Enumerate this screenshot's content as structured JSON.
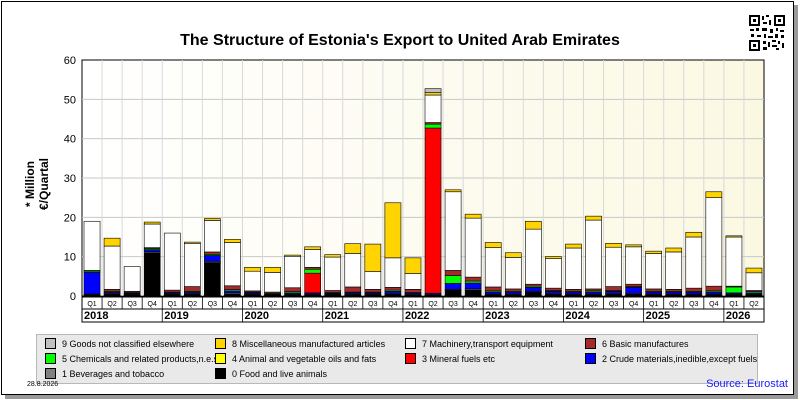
{
  "chart_data": {
    "type": "bar",
    "stacked": true,
    "title": "The Structure of Estonia's Export to United Arab Emirates",
    "ylabel": "* Million €/Quartal",
    "ylim": [
      0,
      60
    ],
    "yticks": [
      0,
      10,
      20,
      30,
      40,
      50,
      60
    ],
    "grid": true,
    "categories": [
      "Q1",
      "Q2",
      "Q3",
      "Q4",
      "Q1",
      "Q2",
      "Q3",
      "Q4",
      "Q1",
      "Q2",
      "Q3",
      "Q4",
      "Q1",
      "Q2",
      "Q3",
      "Q4",
      "Q1",
      "Q2",
      "Q3",
      "Q4",
      "Q1",
      "Q2",
      "Q3",
      "Q4",
      "Q1",
      "Q2",
      "Q3",
      "Q4",
      "Q1",
      "Q2",
      "Q3",
      "Q4",
      "Q1",
      "Q2"
    ],
    "years": [
      {
        "label": "2018",
        "quarters": 4
      },
      {
        "label": "2019",
        "quarters": 4
      },
      {
        "label": "2020",
        "quarters": 4
      },
      {
        "label": "2021",
        "quarters": 4
      },
      {
        "label": "2022",
        "quarters": 4
      },
      {
        "label": "2023",
        "quarters": 4
      },
      {
        "label": "2024",
        "quarters": 4
      },
      {
        "label": "2025",
        "quarters": 4
      },
      {
        "label": "2026",
        "quarters": 2
      }
    ],
    "series": [
      {
        "name": "0 Food and live animals",
        "color": "#000000",
        "values": [
          0.3,
          0.5,
          0.3,
          11,
          0.3,
          0.5,
          8.5,
          0.5,
          0.3,
          0.2,
          0.3,
          0.3,
          0.3,
          0.3,
          0.3,
          0.5,
          0.2,
          0.2,
          1.5,
          1.5,
          0.3,
          0.3,
          1,
          0.5,
          0.3,
          0.3,
          0.5,
          0.5,
          0.3,
          0.3,
          0.3,
          0.3,
          0.3,
          0.3
        ]
      },
      {
        "name": "1 Beverages and tobacco",
        "color": "#808080",
        "values": [
          0.2,
          0.2,
          0.2,
          0.3,
          0.2,
          0.2,
          0.3,
          0.3,
          0.2,
          0.1,
          0.2,
          0.2,
          0.2,
          0.2,
          0.2,
          0.2,
          0.2,
          0.2,
          0.2,
          0.3,
          0.2,
          0.2,
          0.2,
          0.2,
          0.2,
          0.2,
          0.2,
          0.2,
          0.2,
          0.2,
          0.2,
          0.2,
          0.2,
          0.2
        ]
      },
      {
        "name": "2 Crude materials,inedible,except fuels",
        "color": "#0000ff",
        "values": [
          5.5,
          0.3,
          0.2,
          0.5,
          0.3,
          0.3,
          1.5,
          0.5,
          0.3,
          0.2,
          0.3,
          0.3,
          0.2,
          0.3,
          0.3,
          0.5,
          0.3,
          0.3,
          1.5,
          1.5,
          0.5,
          0.5,
          1,
          0.5,
          0.5,
          0.5,
          0.5,
          1.5,
          0.5,
          0.5,
          0.5,
          0.5,
          0.3,
          0.3
        ]
      },
      {
        "name": "3 Mineral fuels etc",
        "color": "#ff0000",
        "values": [
          0,
          0,
          0,
          0,
          0,
          0,
          0,
          0,
          0,
          0,
          0,
          5,
          0,
          0,
          0,
          0,
          0,
          42,
          0,
          0,
          0,
          0,
          0,
          0,
          0,
          0,
          0,
          0,
          0,
          0,
          0,
          0,
          0,
          0
        ]
      },
      {
        "name": "4 Animal and vegetable oils and fats",
        "color": "#ffff00",
        "values": [
          0,
          0,
          0,
          0,
          0,
          0,
          0,
          0,
          0,
          0,
          0,
          0,
          0,
          0,
          0,
          0,
          0,
          0,
          0,
          0,
          0,
          0,
          0,
          0,
          0,
          0,
          0,
          0,
          0,
          0,
          0,
          0,
          0,
          0
        ]
      },
      {
        "name": "5 Chemicals and related products,n.e.s.",
        "color": "#00ff00",
        "values": [
          0.3,
          0.2,
          0.2,
          0.3,
          0.2,
          0.2,
          0.3,
          0.3,
          0.2,
          0.2,
          0.3,
          1,
          0.2,
          0.2,
          0.2,
          0.3,
          0.2,
          1,
          2,
          0.5,
          0.3,
          0.2,
          0.3,
          0.2,
          0.2,
          0.3,
          0.2,
          0.2,
          0.2,
          0.2,
          0.2,
          0.3,
          1.5,
          0.3
        ]
      },
      {
        "name": "6 Basic manufactures",
        "color": "#a52a2a",
        "values": [
          0.2,
          0.5,
          0.3,
          0.2,
          0.5,
          1.2,
          0.6,
          1,
          0.3,
          0.3,
          1,
          0.5,
          0.5,
          1.3,
          0.7,
          0.7,
          0.8,
          0.4,
          1.3,
          1,
          1,
          0.6,
          0.5,
          0.6,
          0.5,
          0.5,
          1,
          0.6,
          0.6,
          0.5,
          0.8,
          1.2,
          0.2,
          0.3
        ]
      },
      {
        "name": "7 Machinery,transport equipment",
        "color": "#ffffff",
        "values": [
          12.5,
          11,
          6.3,
          6,
          14.5,
          11,
          8,
          11,
          5,
          5,
          8,
          4.5,
          8.5,
          8.5,
          4.5,
          7.5,
          4,
          7,
          20,
          15,
          10,
          8,
          14,
          7.5,
          10.5,
          17.5,
          10,
          9.5,
          9,
          9.5,
          13,
          22.5,
          12.5,
          4.5
        ]
      },
      {
        "name": "8 Miscellaneous manufactured articles",
        "color": "#ffd400",
        "values": [
          0,
          2,
          0,
          0.5,
          0,
          0.3,
          0.5,
          0.8,
          1,
          1.3,
          0.3,
          0.7,
          0.6,
          2.5,
          7,
          14,
          4,
          0.6,
          0.5,
          1,
          1.3,
          1.2,
          2,
          0.5,
          1,
          1,
          1,
          0.5,
          0.6,
          1,
          1.2,
          1.5,
          0.3,
          1.2
        ]
      },
      {
        "name": "9 Goods not classified elsewhere",
        "color": "#c0c0c0",
        "values": [
          0,
          0,
          0,
          0,
          0,
          0,
          0,
          0,
          0,
          0,
          0,
          0,
          0,
          0,
          0,
          0,
          0,
          1,
          0,
          0,
          0,
          0,
          0,
          0,
          0,
          0,
          0,
          0,
          0,
          0,
          0,
          0,
          0,
          0
        ]
      }
    ],
    "legend_position": "bottom"
  },
  "qr_label": "qr-code",
  "date_stamp": "28.8.2026",
  "source": "Source: Eurostat"
}
